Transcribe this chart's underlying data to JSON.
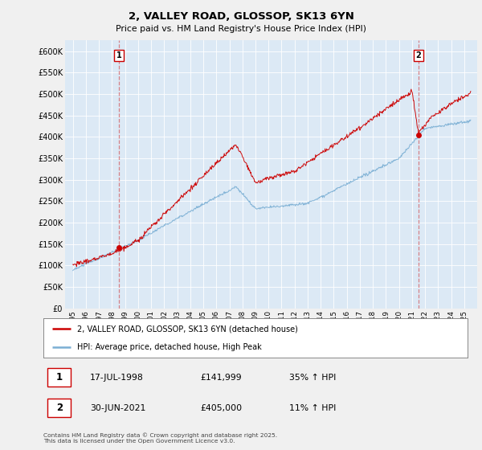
{
  "title": "2, VALLEY ROAD, GLOSSOP, SK13 6YN",
  "subtitle": "Price paid vs. HM Land Registry's House Price Index (HPI)",
  "ylim": [
    0,
    620000
  ],
  "sale1_date": 1998.54,
  "sale1_price": 141999,
  "sale1_label": "1",
  "sale2_date": 2021.5,
  "sale2_price": 405000,
  "sale2_label": "2",
  "hpi_color": "#7bafd4",
  "price_color": "#cc0000",
  "vline_color": "#cc0000",
  "vline_alpha": 0.45,
  "plot_bg_color": "#dce9f5",
  "fig_bg_color": "#f0f0f0",
  "legend_label1": "2, VALLEY ROAD, GLOSSOP, SK13 6YN (detached house)",
  "legend_label2": "HPI: Average price, detached house, High Peak",
  "table_row1": [
    "1",
    "17-JUL-1998",
    "£141,999",
    "35% ↑ HPI"
  ],
  "table_row2": [
    "2",
    "30-JUN-2021",
    "£405,000",
    "11% ↑ HPI"
  ],
  "footnote": "Contains HM Land Registry data © Crown copyright and database right 2025.\nThis data is licensed under the Open Government Licence v3.0."
}
